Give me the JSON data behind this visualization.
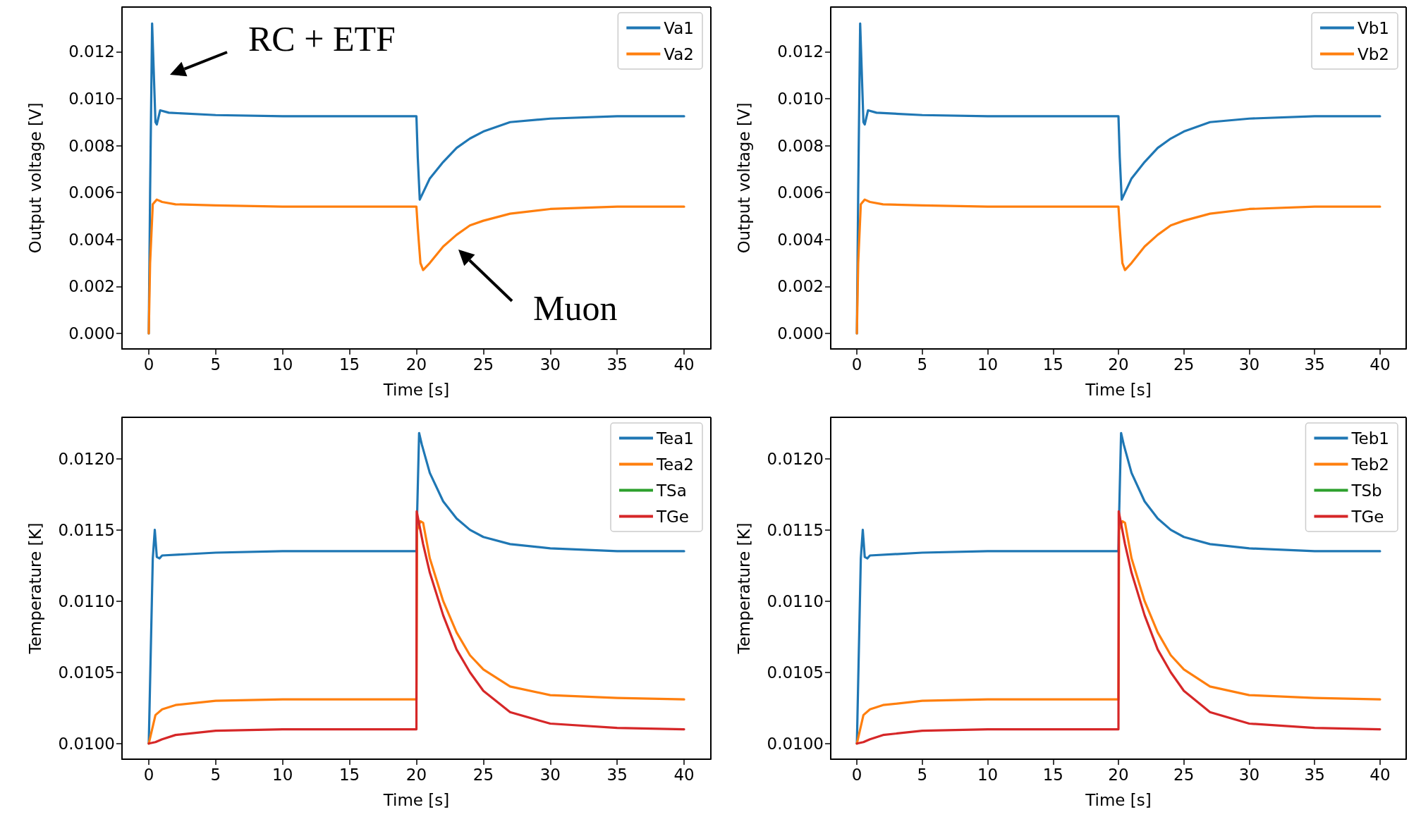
{
  "chart_data": [
    {
      "type": "line",
      "xlabel": "Time [s]",
      "ylabel": "Output voltage [V]",
      "xlim": [
        -2,
        42
      ],
      "xticks": [
        0,
        5,
        10,
        15,
        20,
        25,
        30,
        35,
        40
      ],
      "ylim": [
        -0.00066,
        0.0139
      ],
      "yticks": [
        {
          "value": 0,
          "label": "0.000"
        },
        {
          "value": 0.002,
          "label": "0.002"
        },
        {
          "value": 0.004,
          "label": "0.004"
        },
        {
          "value": 0.006,
          "label": "0.006"
        },
        {
          "value": 0.008,
          "label": "0.008"
        },
        {
          "value": 0.01,
          "label": "0.010"
        },
        {
          "value": 0.012,
          "label": "0.012"
        }
      ],
      "grid": false,
      "legend": "top right",
      "marker": "none",
      "line_style": "solid",
      "annotations": [
        "RC + ETF",
        "Muon"
      ],
      "series": [
        {
          "name": "Va1",
          "color": "#1f77b4",
          "x": [
            0,
            0.1,
            0.25,
            0.5,
            0.6,
            0.85,
            1.5,
            5,
            10,
            20,
            20.1,
            20.25,
            20.5,
            21,
            22,
            23,
            24,
            25,
            27,
            30,
            35,
            40
          ],
          "values": [
            0,
            0.006,
            0.0132,
            0.009,
            0.0089,
            0.0095,
            0.0094,
            0.0093,
            0.00925,
            0.00925,
            0.0075,
            0.0057,
            0.006,
            0.0066,
            0.0073,
            0.0079,
            0.0083,
            0.0086,
            0.009,
            0.00915,
            0.00925,
            0.00925
          ]
        },
        {
          "name": "Va2",
          "color": "#ff7f0e",
          "x": [
            0,
            0.1,
            0.3,
            0.6,
            1,
            2,
            5,
            10,
            20,
            20.1,
            20.3,
            20.5,
            21,
            22,
            23,
            24,
            25,
            27,
            30,
            35,
            40
          ],
          "values": [
            0,
            0.003,
            0.0055,
            0.0057,
            0.0056,
            0.0055,
            0.00545,
            0.0054,
            0.0054,
            0.0045,
            0.003,
            0.0027,
            0.003,
            0.0037,
            0.0042,
            0.0046,
            0.0048,
            0.0051,
            0.0053,
            0.0054,
            0.0054
          ]
        }
      ]
    },
    {
      "type": "line",
      "xlabel": "Time [s]",
      "ylabel": "Output voltage [V]",
      "xlim": [
        -2,
        42
      ],
      "xticks": [
        0,
        5,
        10,
        15,
        20,
        25,
        30,
        35,
        40
      ],
      "ylim": [
        -0.00066,
        0.0139
      ],
      "yticks": [
        {
          "value": 0,
          "label": "0.000"
        },
        {
          "value": 0.002,
          "label": "0.002"
        },
        {
          "value": 0.004,
          "label": "0.004"
        },
        {
          "value": 0.006,
          "label": "0.006"
        },
        {
          "value": 0.008,
          "label": "0.008"
        },
        {
          "value": 0.01,
          "label": "0.010"
        },
        {
          "value": 0.012,
          "label": "0.012"
        }
      ],
      "grid": false,
      "legend": "top right",
      "marker": "none",
      "line_style": "solid",
      "series": [
        {
          "name": "Vb1",
          "color": "#1f77b4",
          "x": [
            0,
            0.1,
            0.25,
            0.5,
            0.6,
            0.85,
            1.5,
            5,
            10,
            20,
            20.1,
            20.25,
            20.5,
            21,
            22,
            23,
            24,
            25,
            27,
            30,
            35,
            40
          ],
          "values": [
            0,
            0.006,
            0.0132,
            0.009,
            0.0089,
            0.0095,
            0.0094,
            0.0093,
            0.00925,
            0.00925,
            0.0075,
            0.0057,
            0.006,
            0.0066,
            0.0073,
            0.0079,
            0.0083,
            0.0086,
            0.009,
            0.00915,
            0.00925,
            0.00925
          ]
        },
        {
          "name": "Vb2",
          "color": "#ff7f0e",
          "x": [
            0,
            0.1,
            0.3,
            0.6,
            1,
            2,
            5,
            10,
            20,
            20.1,
            20.3,
            20.5,
            21,
            22,
            23,
            24,
            25,
            27,
            30,
            35,
            40
          ],
          "values": [
            0,
            0.003,
            0.0055,
            0.0057,
            0.0056,
            0.0055,
            0.00545,
            0.0054,
            0.0054,
            0.0045,
            0.003,
            0.0027,
            0.003,
            0.0037,
            0.0042,
            0.0046,
            0.0048,
            0.0051,
            0.0053,
            0.0054,
            0.0054
          ]
        }
      ]
    },
    {
      "type": "line",
      "xlabel": "Time [s]",
      "ylabel": "Temperature [K]",
      "xlim": [
        -2,
        42
      ],
      "xticks": [
        0,
        5,
        10,
        15,
        20,
        25,
        30,
        35,
        40
      ],
      "ylim": [
        0.00989,
        0.01229
      ],
      "yticks": [
        {
          "value": 0.01,
          "label": "0.0100"
        },
        {
          "value": 0.0105,
          "label": "0.0105"
        },
        {
          "value": 0.011,
          "label": "0.0110"
        },
        {
          "value": 0.0115,
          "label": "0.0115"
        },
        {
          "value": 0.012,
          "label": "0.0120"
        }
      ],
      "grid": false,
      "legend": "top right",
      "marker": "none",
      "line_style": "solid",
      "series": [
        {
          "name": "Tea1",
          "color": "#1f77b4",
          "x": [
            0,
            0.3,
            0.45,
            0.6,
            0.8,
            1,
            5,
            10,
            20,
            20.05,
            20.2,
            20.4,
            21,
            22,
            23,
            24,
            25,
            27,
            30,
            35,
            40
          ],
          "values": [
            0.01,
            0.0113,
            0.0115,
            0.01131,
            0.0113,
            0.01132,
            0.01134,
            0.01135,
            0.01135,
            0.0116,
            0.01218,
            0.0121,
            0.0119,
            0.0117,
            0.01158,
            0.0115,
            0.01145,
            0.0114,
            0.01137,
            0.01135,
            0.01135
          ]
        },
        {
          "name": "Tea2",
          "color": "#ff7f0e",
          "x": [
            0,
            0.5,
            1,
            2,
            5,
            10,
            20,
            20.05,
            20.3,
            20.5,
            21,
            22,
            23,
            24,
            25,
            27,
            30,
            35,
            40
          ],
          "values": [
            0.01,
            0.0102,
            0.01024,
            0.01027,
            0.0103,
            0.01031,
            0.01031,
            0.0115,
            0.01156,
            0.01155,
            0.0113,
            0.011,
            0.01078,
            0.01062,
            0.01052,
            0.0104,
            0.01034,
            0.01032,
            0.01031
          ]
        },
        {
          "name": "TSa",
          "color": "#2ca02c"
        },
        {
          "name": "TGe",
          "color": "#d62728",
          "x": [
            0,
            0.5,
            1,
            2,
            5,
            10,
            20,
            20.02,
            20.5,
            21,
            22,
            23,
            24,
            25,
            27,
            30,
            35,
            40
          ],
          "values": [
            0.01,
            0.01001,
            0.01003,
            0.01006,
            0.01009,
            0.0101,
            0.0101,
            0.01163,
            0.0114,
            0.0112,
            0.0109,
            0.01066,
            0.0105,
            0.01037,
            0.01022,
            0.01014,
            0.01011,
            0.0101
          ]
        }
      ]
    },
    {
      "type": "line",
      "xlabel": "Time [s]",
      "ylabel": "Temperature [K]",
      "xlim": [
        -2,
        42
      ],
      "xticks": [
        0,
        5,
        10,
        15,
        20,
        25,
        30,
        35,
        40
      ],
      "ylim": [
        0.00989,
        0.01229
      ],
      "yticks": [
        {
          "value": 0.01,
          "label": "0.0100"
        },
        {
          "value": 0.0105,
          "label": "0.0105"
        },
        {
          "value": 0.011,
          "label": "0.0110"
        },
        {
          "value": 0.0115,
          "label": "0.0115"
        },
        {
          "value": 0.012,
          "label": "0.0120"
        }
      ],
      "grid": false,
      "legend": "top right",
      "marker": "none",
      "line_style": "solid",
      "series": [
        {
          "name": "Teb1",
          "color": "#1f77b4",
          "x": [
            0,
            0.3,
            0.45,
            0.6,
            0.8,
            1,
            5,
            10,
            20,
            20.05,
            20.2,
            20.4,
            21,
            22,
            23,
            24,
            25,
            27,
            30,
            35,
            40
          ],
          "values": [
            0.01,
            0.0113,
            0.0115,
            0.01131,
            0.0113,
            0.01132,
            0.01134,
            0.01135,
            0.01135,
            0.0116,
            0.01218,
            0.0121,
            0.0119,
            0.0117,
            0.01158,
            0.0115,
            0.01145,
            0.0114,
            0.01137,
            0.01135,
            0.01135
          ]
        },
        {
          "name": "Teb2",
          "color": "#ff7f0e",
          "x": [
            0,
            0.5,
            1,
            2,
            5,
            10,
            20,
            20.05,
            20.3,
            20.5,
            21,
            22,
            23,
            24,
            25,
            27,
            30,
            35,
            40
          ],
          "values": [
            0.01,
            0.0102,
            0.01024,
            0.01027,
            0.0103,
            0.01031,
            0.01031,
            0.0115,
            0.01156,
            0.01155,
            0.0113,
            0.011,
            0.01078,
            0.01062,
            0.01052,
            0.0104,
            0.01034,
            0.01032,
            0.01031
          ]
        },
        {
          "name": "TSb",
          "color": "#2ca02c"
        },
        {
          "name": "TGe",
          "color": "#d62728",
          "x": [
            0,
            0.5,
            1,
            2,
            5,
            10,
            20,
            20.02,
            20.5,
            21,
            22,
            23,
            24,
            25,
            27,
            30,
            35,
            40
          ],
          "values": [
            0.01,
            0.01001,
            0.01003,
            0.01006,
            0.01009,
            0.0101,
            0.0101,
            0.01163,
            0.0114,
            0.0112,
            0.0109,
            0.01066,
            0.0105,
            0.01037,
            0.01022,
            0.01014,
            0.01011,
            0.0101
          ]
        }
      ]
    }
  ]
}
